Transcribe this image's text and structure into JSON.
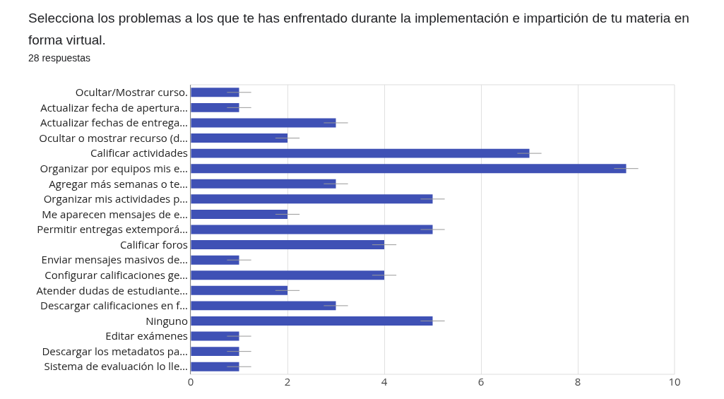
{
  "chart_data": {
    "type": "bar",
    "orientation": "horizontal",
    "title": "Selecciona los problemas a los que te has enfrentado durante la implementación e impartición de tu materia en forma virtual.",
    "subtitle": "28 respuestas",
    "categories": [
      "Ocultar/Mostrar curso.",
      "Actualizar fecha de apertura…",
      "Actualizar fechas de entrega…",
      "Ocultar o mostrar recurso (d…",
      "Calificar actividades",
      "Organizar por equipos mis e…",
      "Agregar más semanas o te…",
      "Organizar mis actividades p…",
      "Me aparecen mensajes de e…",
      "Permitir entregas extemporá…",
      "Calificar foros",
      "Enviar mensajes masivos de…",
      "Configurar calificaciones ge…",
      "Atender dudas de estudiante…",
      "Descargar calificaciones en f…",
      "Ninguno",
      "Editar exámenes",
      "Descargar los metadatos pa…",
      "Sistema de evaluación lo lle…"
    ],
    "values": [
      1,
      1,
      3,
      2,
      7,
      9,
      3,
      5,
      2,
      5,
      4,
      1,
      4,
      2,
      3,
      5,
      1,
      1,
      1
    ],
    "errors": [
      0.25,
      0.25,
      0.25,
      0.25,
      0.25,
      0.25,
      0.25,
      0.25,
      0.25,
      0.25,
      0.25,
      0.25,
      0.25,
      0.25,
      0.25,
      0.25,
      0.25,
      0.25,
      0.25
    ],
    "color": "#3f51b5",
    "xlim": [
      0,
      10
    ],
    "xticks": [
      0,
      2,
      4,
      6,
      8,
      10
    ],
    "grid": "x"
  }
}
